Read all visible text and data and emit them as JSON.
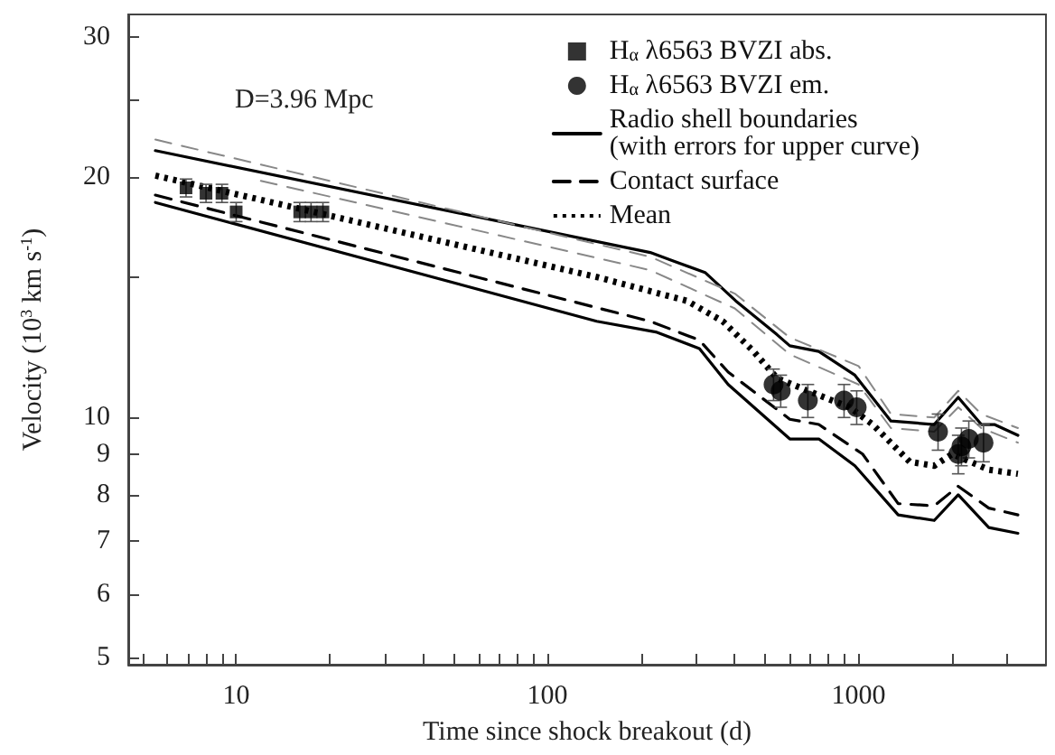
{
  "chart_data": {
    "type": "line",
    "xlabel": "Time since shock breakout (d)",
    "ylabel": "Velocity (10$^{3}$ km s$^{-1}$)",
    "annotations": [
      "D=3.96 Mpc"
    ],
    "log": "xy",
    "grid": false,
    "legend": "top right",
    "xlim": [
      4.5,
      4000
    ],
    "ylim": [
      4.9,
      32
    ],
    "xticks": [
      {
        "value": 5,
        "label": null
      },
      {
        "value": 6,
        "label": null
      },
      {
        "value": 7,
        "label": null
      },
      {
        "value": 8,
        "label": null
      },
      {
        "value": 9,
        "label": null
      },
      10,
      {
        "value": 20,
        "label": null
      },
      {
        "value": 30,
        "label": null
      },
      {
        "value": 40,
        "label": null
      },
      {
        "value": 50,
        "label": null
      },
      {
        "value": 60,
        "label": null
      },
      {
        "value": 70,
        "label": null
      },
      {
        "value": 80,
        "label": null
      },
      {
        "value": 90,
        "label": null
      },
      100,
      {
        "value": 200,
        "label": null
      },
      {
        "value": 300,
        "label": null
      },
      {
        "value": 400,
        "label": null
      },
      {
        "value": 500,
        "label": null
      },
      {
        "value": 600,
        "label": null
      },
      {
        "value": 700,
        "label": null
      },
      {
        "value": 800,
        "label": null
      },
      {
        "value": 900,
        "label": null
      },
      1000,
      {
        "value": 2000,
        "label": null
      },
      {
        "value": 3000,
        "label": null
      }
    ],
    "yticks": [
      5,
      6,
      7,
      8,
      9,
      10,
      {
        "value": 15,
        "label": null
      },
      20,
      {
        "value": 25,
        "label": null
      },
      30
    ],
    "series": [
      {
        "name": "H$_{α}$ λ6563 BVZI abs.",
        "type": "scatter",
        "marker": "square",
        "color": "#000000",
        "x": [
          6.9,
          8.0,
          9.0,
          10.0,
          16.0,
          17.4,
          19.0
        ],
        "values": [
          19.4,
          19.1,
          19.1,
          18.1,
          18.1,
          18.1,
          18.1
        ],
        "errors": [
          0.5,
          0.5,
          0.5,
          0.5,
          0.5,
          0.5,
          0.5
        ]
      },
      {
        "name": "H$_{α}$ λ6563 BVZI em.",
        "type": "scatter",
        "marker": "circle",
        "color": "#000000",
        "x": [
          533,
          562,
          687,
          898,
          986,
          1800,
          2090,
          2140,
          2260,
          2520
        ],
        "values": [
          11.0,
          10.8,
          10.5,
          10.5,
          10.3,
          9.6,
          9.0,
          9.2,
          9.4,
          9.3
        ],
        "errors": [
          0.5,
          0.5,
          0.5,
          0.5,
          0.5,
          0.5,
          0.5,
          0.5,
          0.5,
          0.5
        ]
      },
      {
        "name": "Radio shell boundaries\n(with errors for upper curve)",
        "marker": "none",
        "line_style": "solid",
        "color": "#000000",
        "x": [
          5.5,
          214,
          255,
          321,
          403,
          547,
          601,
          745,
          973,
          1270,
          1750,
          2090,
          2480,
          2730,
          3250
        ],
        "values": [
          21.6,
          16.1,
          15.7,
          15.2,
          14.0,
          12.7,
          12.3,
          12.1,
          11.3,
          9.9,
          9.8,
          10.6,
          9.8,
          9.8,
          9.5
        ]
      },
      {
        "marker": "none",
        "line_style": "dashed",
        "color": "#888888",
        "x": [
          5.5,
          214,
          400,
          600,
          1000,
          1270,
          1750,
          2090,
          2480,
          3250
        ],
        "values": [
          22.3,
          15.9,
          14.3,
          12.6,
          11.6,
          10.1,
          10.0,
          10.8,
          10.1,
          9.7
        ]
      },
      {
        "marker": "none",
        "line_style": "dashed",
        "color": "#888888",
        "x": [
          12,
          214,
          400,
          600,
          1000,
          1270,
          1750,
          2090,
          2480,
          3250
        ],
        "values": [
          19.8,
          15.3,
          13.7,
          12.0,
          11.0,
          9.7,
          9.6,
          10.3,
          9.7,
          9.3
        ]
      },
      {
        "name": "Contact surface",
        "marker": "none",
        "line_style": "dashed",
        "color": "#000000",
        "x": [
          5.5,
          214,
          308,
          381,
          601,
          745,
          1030,
          1340,
          1750,
          2090,
          2620,
          3250
        ],
        "values": [
          19.0,
          13.2,
          12.5,
          11.4,
          9.95,
          9.8,
          9.0,
          7.8,
          7.75,
          8.2,
          7.7,
          7.55
        ]
      },
      {
        "marker": "none",
        "line_style": "solid",
        "color": "#000000",
        "x": [
          5.5,
          144,
          223,
          308,
          381,
          601,
          745,
          973,
          1340,
          1750,
          2090,
          2620,
          3250
        ],
        "values": [
          18.6,
          13.2,
          12.8,
          12.2,
          11.0,
          9.4,
          9.4,
          8.7,
          7.55,
          7.43,
          8.0,
          7.28,
          7.16
        ]
      },
      {
        "name": "Mean",
        "marker": "none",
        "line_style": "dotted",
        "color": "#000000",
        "x": [
          5.5,
          144,
          281,
          366,
          460,
          547,
          687,
          935,
          1110,
          1460,
          1750,
          2000,
          2290,
          2620,
          3250
        ],
        "values": [
          20.1,
          15.0,
          14.0,
          13.2,
          12.1,
          11.2,
          10.8,
          10.3,
          9.8,
          8.8,
          8.7,
          9.0,
          8.8,
          8.6,
          8.5
        ]
      }
    ]
  }
}
